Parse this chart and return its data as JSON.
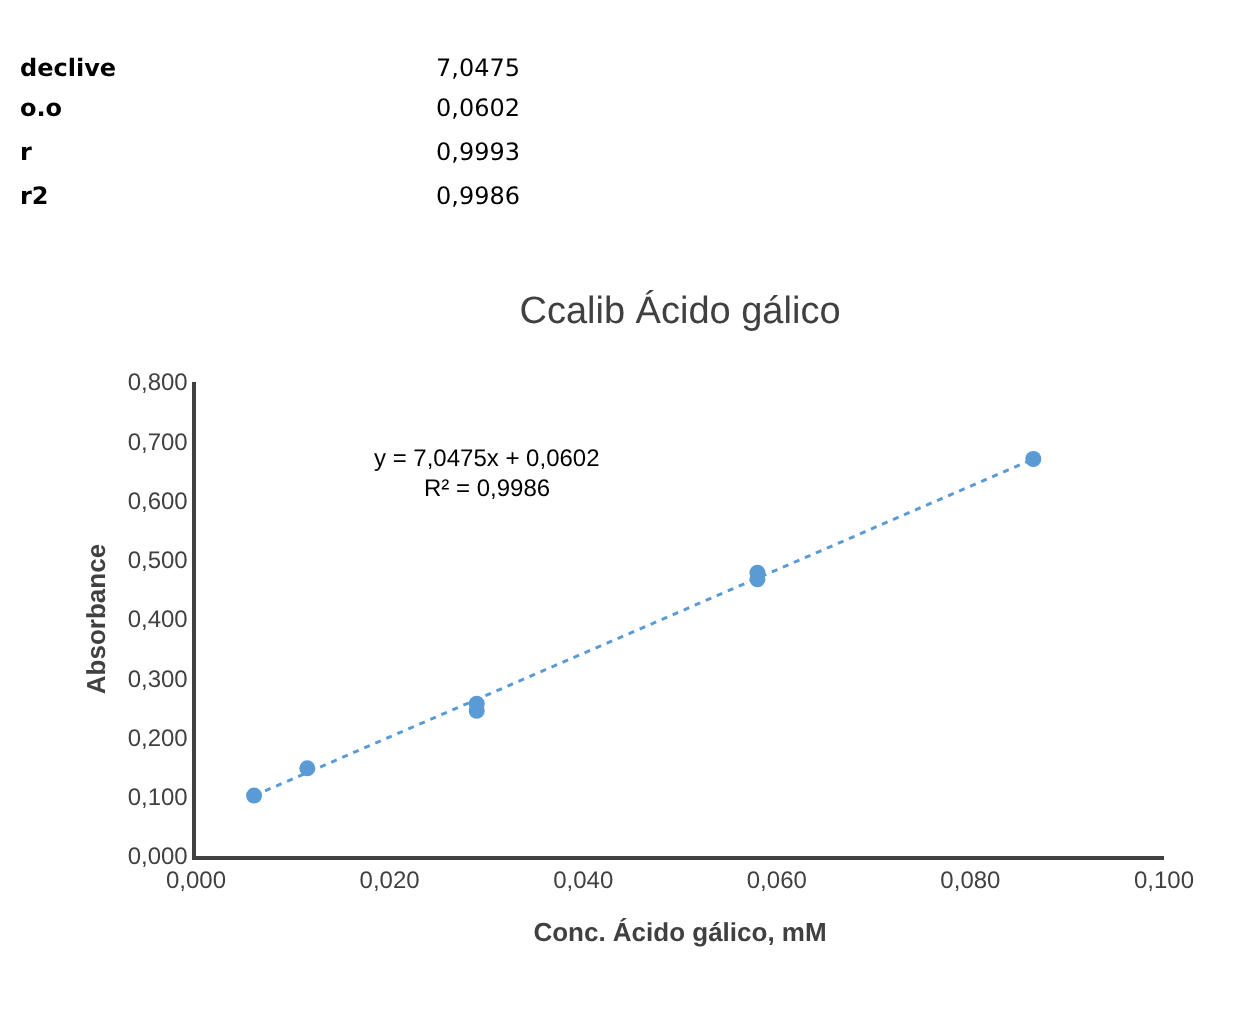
{
  "chart_data": {
    "type": "scatter",
    "title": "Ccalib Ácido gálico",
    "xlabel": "Conc. Ácido gálico, mM",
    "ylabel": "Absorbance",
    "series": [
      {
        "color": "#5b9bd5",
        "marker": "circle",
        "x": [
          0.006,
          0.0115,
          0.029,
          0.029,
          0.058,
          0.058,
          0.0865
        ],
        "values": [
          0.102,
          0.148,
          0.245,
          0.257,
          0.467,
          0.478,
          0.67
        ]
      },
      {
        "type": "line",
        "color": "#5b9bd5",
        "line_style": "dotted",
        "x": [
          0.006,
          0.0865
        ],
        "values": [
          0.102,
          0.67
        ]
      }
    ],
    "xlim": [
      0,
      0.1
    ],
    "ylim": [
      0,
      0.8
    ],
    "xticks": [
      {
        "value": 0,
        "label": "0,000"
      },
      {
        "value": 0.02,
        "label": "0,020"
      },
      {
        "value": 0.04,
        "label": "0,040"
      },
      {
        "value": 0.06,
        "label": "0,060"
      },
      {
        "value": 0.08,
        "label": "0,080"
      },
      {
        "value": 0.1,
        "label": "0,100"
      }
    ],
    "yticks": [
      {
        "value": 0,
        "label": "0,000"
      },
      {
        "value": 0.1,
        "label": "0,100"
      },
      {
        "value": 0.2,
        "label": "0,200"
      },
      {
        "value": 0.3,
        "label": "0,300"
      },
      {
        "value": 0.4,
        "label": "0,400"
      },
      {
        "value": 0.5,
        "label": "0,500"
      },
      {
        "value": 0.6,
        "label": "0,600"
      },
      {
        "value": 0.7,
        "label": "0,700"
      },
      {
        "value": 0.8,
        "label": "0,800"
      }
    ],
    "annotations": [
      "declive",
      "7,0475",
      "o.o",
      "0,0602",
      "r",
      "0,9993",
      "r2",
      "0,9986",
      "y = 7,0475x + 0,0602",
      "R² = 0,9986"
    ]
  }
}
